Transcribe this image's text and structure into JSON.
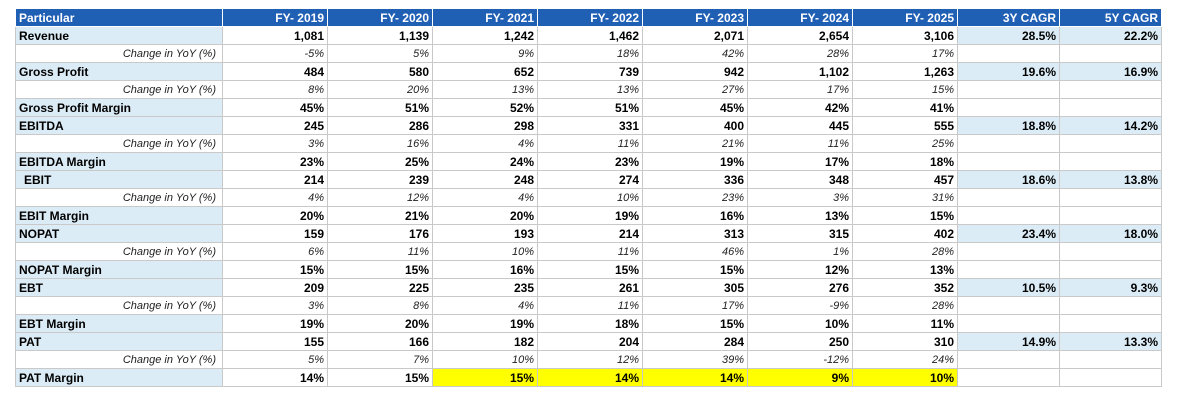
{
  "header": [
    "Particular",
    "FY- 2019",
    "FY- 2020",
    "FY- 2021",
    "FY- 2022",
    "FY- 2023",
    "FY- 2024",
    "FY- 2025",
    "3Y CAGR",
    "5Y CAGR"
  ],
  "rows": [
    {
      "label": "Revenue",
      "values": [
        "1,081",
        "1,139",
        "1,242",
        "1,462",
        "2,071",
        "2,654",
        "3,106"
      ],
      "cagr3": "28.5%",
      "cagr5": "22.2%"
    },
    {
      "label": "Change in YoY (%)",
      "values": [
        "-5%",
        "5%",
        "9%",
        "18%",
        "42%",
        "28%",
        "17%"
      ]
    },
    {
      "label": "Gross Profit",
      "values": [
        "484",
        "580",
        "652",
        "739",
        "942",
        "1,102",
        "1,263"
      ],
      "cagr3": "19.6%",
      "cagr5": "16.9%"
    },
    {
      "label": "Change in YoY (%)",
      "values": [
        "8%",
        "20%",
        "13%",
        "13%",
        "27%",
        "17%",
        "15%"
      ]
    },
    {
      "label": "Gross Profit Margin",
      "values": [
        "45%",
        "51%",
        "52%",
        "51%",
        "45%",
        "42%",
        "41%"
      ]
    },
    {
      "label": "EBITDA",
      "values": [
        "245",
        "286",
        "298",
        "331",
        "400",
        "445",
        "555"
      ],
      "cagr3": "18.8%",
      "cagr5": "14.2%"
    },
    {
      "label": "Change in YoY (%)",
      "values": [
        "3%",
        "16%",
        "4%",
        "11%",
        "21%",
        "11%",
        "25%"
      ]
    },
    {
      "label": "EBITDA Margin",
      "values": [
        "23%",
        "25%",
        "24%",
        "23%",
        "19%",
        "17%",
        "18%"
      ]
    },
    {
      "label": "EBIT",
      "values": [
        "214",
        "239",
        "248",
        "274",
        "336",
        "348",
        "457"
      ],
      "cagr3": "18.6%",
      "cagr5": "13.8%"
    },
    {
      "label": "Change in YoY (%)",
      "values": [
        "4%",
        "12%",
        "4%",
        "10%",
        "23%",
        "3%",
        "31%"
      ]
    },
    {
      "label": "EBIT Margin",
      "values": [
        "20%",
        "21%",
        "20%",
        "19%",
        "16%",
        "13%",
        "15%"
      ]
    },
    {
      "label": "NOPAT",
      "values": [
        "159",
        "176",
        "193",
        "214",
        "313",
        "315",
        "402"
      ],
      "cagr3": "23.4%",
      "cagr5": "18.0%"
    },
    {
      "label": "Change in YoY (%)",
      "values": [
        "6%",
        "11%",
        "10%",
        "11%",
        "46%",
        "1%",
        "28%"
      ]
    },
    {
      "label": "NOPAT Margin",
      "values": [
        "15%",
        "15%",
        "16%",
        "15%",
        "15%",
        "12%",
        "13%"
      ]
    },
    {
      "label": "EBT",
      "values": [
        "209",
        "225",
        "235",
        "261",
        "305",
        "276",
        "352"
      ],
      "cagr3": "10.5%",
      "cagr5": "9.3%"
    },
    {
      "label": "Change in YoY (%)",
      "values": [
        "3%",
        "8%",
        "4%",
        "11%",
        "17%",
        "-9%",
        "28%"
      ]
    },
    {
      "label": "EBT Margin",
      "values": [
        "19%",
        "20%",
        "19%",
        "18%",
        "15%",
        "10%",
        "11%"
      ]
    },
    {
      "label": "PAT",
      "values": [
        "155",
        "166",
        "182",
        "204",
        "284",
        "250",
        "310"
      ],
      "cagr3": "14.9%",
      "cagr5": "13.3%"
    },
    {
      "label": "Change in YoY (%)",
      "values": [
        "5%",
        "7%",
        "10%",
        "12%",
        "39%",
        "-12%",
        "24%"
      ]
    },
    {
      "label": "PAT Margin",
      "values": [
        "14%",
        "15%",
        "15%",
        "14%",
        "14%",
        "9%",
        "10%"
      ]
    }
  ],
  "colors": {
    "header_bg": "#1f5fb4",
    "label_bg": "#dcecf6",
    "highlight": "#ffff00"
  }
}
